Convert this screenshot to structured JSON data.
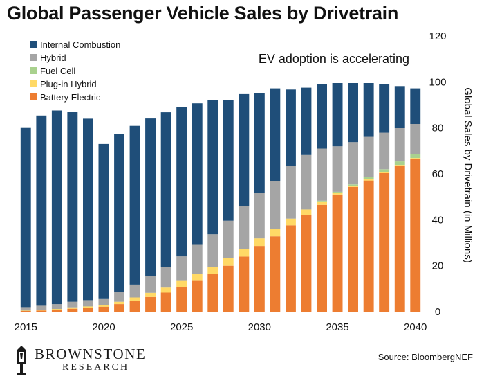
{
  "header": {
    "title": "Global Passenger Vehicle Sales by Drivetrain"
  },
  "footer": {
    "source": "Source: BloombergNEF",
    "brand_name": "BROWNSTONE",
    "brand_sub": "RESEARCH"
  },
  "colors": {
    "internal_combustion": "#1f4e79",
    "hybrid": "#a5a5a5",
    "fuel_cell": "#a9d18e",
    "plug_in_hybrid": "#ffd966",
    "battery_electric": "#ed7d31",
    "gridline": "#d9d9d9"
  },
  "chart_data": {
    "type": "bar",
    "stacked": true,
    "title": "Global Passenger Vehicle Sales by Drivetrain",
    "annotation": "EV adoption is accelerating",
    "ylabel": "Global Sales by Drivetrain (in Millions)",
    "xlabel": "",
    "ylim": [
      0,
      120
    ],
    "y_ticks": [
      "0",
      "20",
      "40",
      "60",
      "80",
      "100",
      "120"
    ],
    "y_axis_position": "right",
    "x_tick_labels": [
      "2015",
      "2020",
      "2025",
      "2030",
      "2035",
      "2040"
    ],
    "grid": false,
    "legend_position": "top-left",
    "categories": [
      "2015",
      "2016",
      "2017",
      "2018",
      "2019",
      "2020",
      "2021",
      "2022",
      "2023",
      "2024",
      "2025",
      "2026",
      "2027",
      "2028",
      "2029",
      "2030",
      "2031",
      "2032",
      "2033",
      "2034",
      "2035",
      "2036",
      "2037",
      "2038",
      "2039",
      "2040"
    ],
    "series": [
      {
        "name": "Battery Electric",
        "values": [
          0.3,
          0.5,
          0.8,
          1.3,
          1.7,
          2.2,
          3.3,
          4.8,
          6.4,
          8.3,
          10.8,
          13.4,
          16.3,
          20.0,
          24.0,
          28.6,
          32.8,
          37.6,
          42.2,
          46.5,
          51.0,
          54.3,
          57.1,
          60.3,
          63.4,
          66.4
        ]
      },
      {
        "name": "Plug-in Hybrid",
        "values": [
          0.2,
          0.3,
          0.4,
          0.6,
          0.6,
          0.8,
          1.0,
          1.4,
          1.8,
          2.2,
          2.6,
          3.0,
          3.2,
          3.3,
          3.3,
          3.3,
          3.2,
          2.9,
          2.3,
          1.5,
          0.8,
          0.5,
          0.5,
          0.5,
          0.5,
          0.5
        ]
      },
      {
        "name": "Fuel Cell",
        "values": [
          0,
          0,
          0,
          0,
          0,
          0,
          0,
          0,
          0,
          0,
          0,
          0,
          0,
          0,
          0,
          0,
          0,
          0,
          0,
          0.3,
          0.4,
          0.6,
          0.9,
          1.2,
          1.5,
          1.8
        ]
      },
      {
        "name": "Hybrid",
        "values": [
          1.5,
          1.8,
          2.1,
          2.4,
          2.7,
          2.8,
          4.2,
          5.6,
          7.3,
          9.1,
          10.7,
          12.7,
          14.2,
          16.3,
          18.7,
          19.8,
          20.8,
          22.9,
          23.7,
          22.7,
          19.8,
          18.4,
          17.6,
          15.9,
          14.5,
          13.0
        ]
      },
      {
        "name": "Internal Combustion",
        "values": [
          78.0,
          82.8,
          84.3,
          82.8,
          79.0,
          67.2,
          69.0,
          69.1,
          68.6,
          67.2,
          65.0,
          61.6,
          58.5,
          52.6,
          48.7,
          43.5,
          40.4,
          33.3,
          29.3,
          27.9,
          27.5,
          25.7,
          23.4,
          21.2,
          18.3,
          15.5
        ]
      }
    ]
  }
}
